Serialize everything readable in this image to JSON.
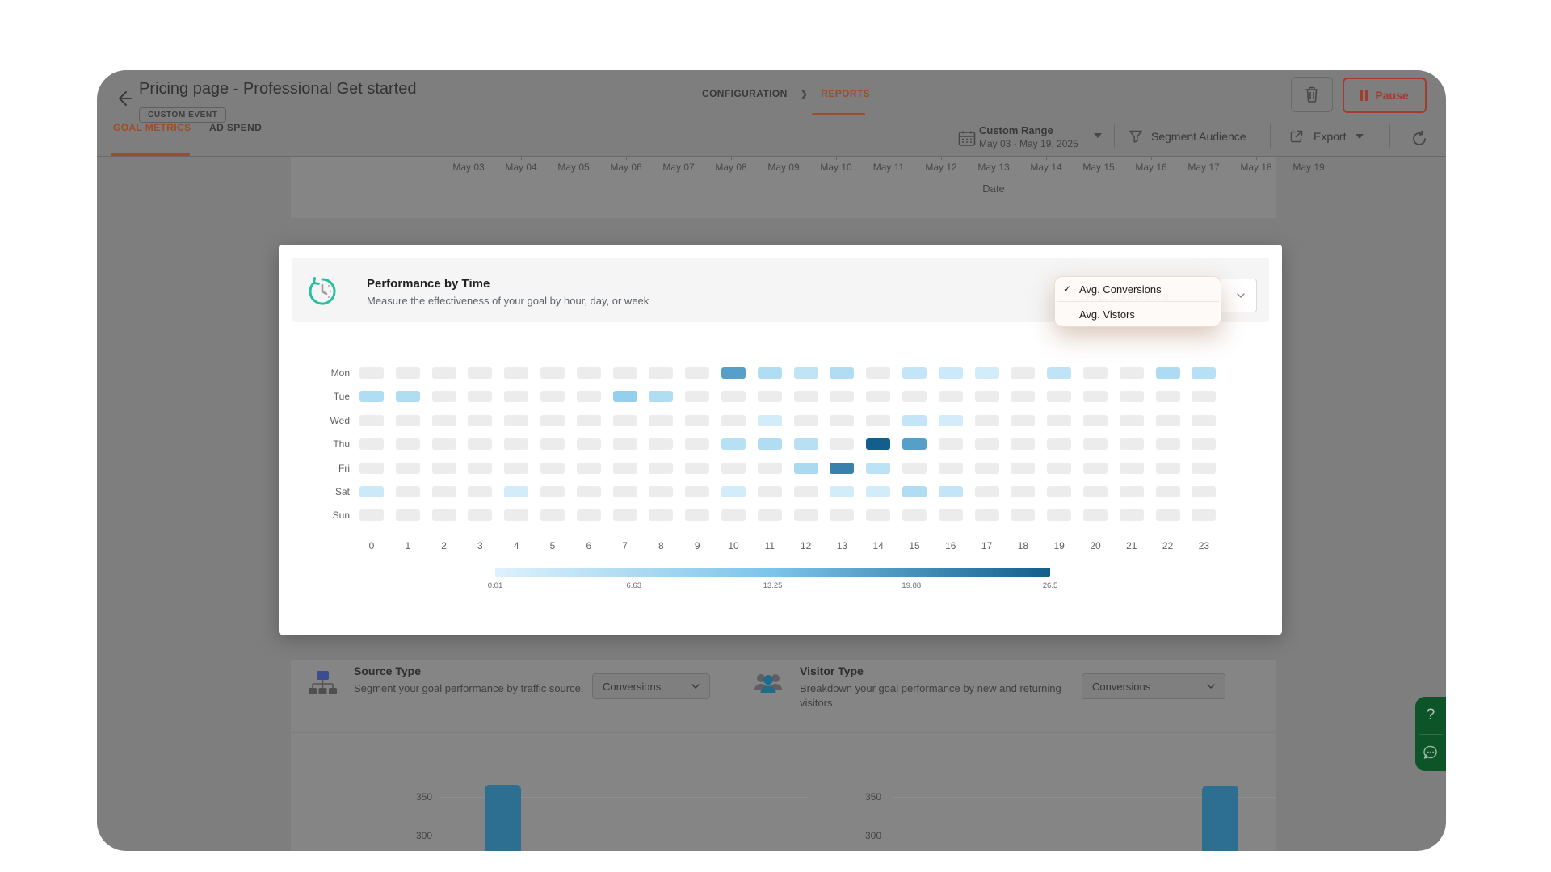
{
  "window": {
    "title": "Pricing page - Professional Get started",
    "badge": "CUSTOM EVENT",
    "pause_label": "Pause"
  },
  "breadcrumb": {
    "configuration": "CONFIGURATION",
    "reports": "REPORTS"
  },
  "tabs": {
    "goal_metrics": "GOAL METRICS",
    "ad_spend": "AD SPEND"
  },
  "toolbar": {
    "range_label": "Custom Range",
    "range_value": "May 03 - May 19, 2025",
    "segment": "Segment Audience",
    "export": "Export"
  },
  "panel": {
    "title": "Performance by Time",
    "subtitle": "Measure the effectiveness of your goal by hour, day, or week",
    "metric_select": "Avg. Conversions"
  },
  "menu": {
    "items": [
      {
        "label": "Avg. Conversions",
        "checked": true
      },
      {
        "label": "Avg. Vistors",
        "checked": false
      }
    ]
  },
  "source_section": {
    "title": "Source Type",
    "description": "Segment your goal performance by traffic source.",
    "select": "Conversions"
  },
  "visitor_section": {
    "title": "Visitor Type",
    "description": "Breakdown your goal performance by new and returning visitors.",
    "select": "Conversions"
  },
  "help_widget": {
    "question": "?"
  },
  "icons": {
    "back-arrow": "left arrow",
    "trash-icon": "trash can outline",
    "pause-icon": "two vertical bars",
    "calendar-icon": "calendar grid",
    "caret-down-icon": "filled triangle",
    "funnel-icon": "filter funnel",
    "export-icon": "box with outgoing arrow",
    "refresh-icon": "circular arrow",
    "clock-history-icon": "teal circular arrow clock",
    "checkmark-icon": "✓",
    "chevron-down-icon": "thin down chevron",
    "sitemap-icon": "hierarchy nodes",
    "people-icon": "group of visitors",
    "question-icon": "?",
    "chat-bubble-icon": "speech bubble with dots"
  },
  "colors": {
    "accent_orange_dimmed": "#9f4c29",
    "pause_red_dimmed": "#a33b31",
    "teal_icon": "#2abfa0",
    "heatmap_empty": "#ececec",
    "heatmap_min": "#ddf1fc",
    "heatmap_mid": "#7cc4e9",
    "heatmap_max": "#135e8c",
    "bar_blue_dimmed": "#2d6f90",
    "help_green_dimmed": "#0d5429",
    "dim_card": "#858585",
    "dim_background": "#7e7e7e"
  },
  "chart_data": [
    {
      "type": "heatmap",
      "title": "Performance by Time",
      "x_hours": [
        0,
        1,
        2,
        3,
        4,
        5,
        6,
        7,
        8,
        9,
        10,
        11,
        12,
        13,
        14,
        15,
        16,
        17,
        18,
        19,
        20,
        21,
        22,
        23
      ],
      "y_days": [
        "Mon",
        "Tue",
        "Wed",
        "Thu",
        "Fri",
        "Sat",
        "Sun"
      ],
      "values": [
        [
          0,
          0,
          0,
          0,
          0,
          0,
          0,
          0,
          0,
          0,
          18,
          6,
          4,
          6,
          0,
          3.5,
          2.5,
          1.5,
          0,
          4,
          0,
          0,
          6.5,
          5
        ],
        [
          6,
          6,
          0,
          0,
          0,
          0,
          0,
          10,
          6,
          0,
          0,
          0,
          0,
          0,
          0,
          0,
          0,
          0,
          0,
          0,
          0,
          0,
          0,
          0
        ],
        [
          0,
          0,
          0,
          0,
          0,
          0,
          0,
          0,
          0,
          0,
          0,
          1.5,
          0,
          0,
          0,
          3.5,
          1.5,
          0,
          0,
          0,
          0,
          0,
          0,
          0
        ],
        [
          0,
          0,
          0,
          0,
          0,
          0,
          0,
          0,
          0,
          0,
          5,
          6,
          5,
          0,
          26.5,
          18,
          0,
          0,
          0,
          0,
          0,
          0,
          0,
          0
        ],
        [
          0,
          0,
          0,
          0,
          0,
          0,
          0,
          0,
          0,
          0,
          0,
          0,
          7,
          22,
          4.5,
          0,
          0,
          0,
          0,
          0,
          0,
          0,
          0,
          0
        ],
        [
          2.5,
          0,
          0,
          0,
          1.5,
          0,
          0,
          0,
          0,
          0,
          1.5,
          0,
          0,
          1.5,
          1.5,
          6,
          3.5,
          0,
          0,
          0,
          0,
          0,
          0,
          0
        ],
        [
          0,
          0,
          0,
          0,
          0,
          0,
          0,
          0,
          0,
          0,
          0,
          0,
          0,
          0,
          0,
          0,
          0,
          0,
          0,
          0,
          0,
          0,
          0,
          0
        ]
      ],
      "value_scale": {
        "min": 0.01,
        "max": 26.5,
        "legend_ticks": [
          "0.01",
          "6.63",
          "13.25",
          "19.88",
          "26.5"
        ],
        "legend_position": "bottom"
      }
    },
    {
      "type": "bar",
      "section": "Source Type",
      "metric": "Conversions",
      "visible_yticks": [
        350,
        300
      ],
      "bars": [
        {
          "value_est": 366
        }
      ],
      "cropped": true
    },
    {
      "type": "bar",
      "section": "Visitor Type",
      "metric": "Conversions",
      "visible_yticks": [
        350,
        300
      ],
      "bars": [
        {
          "value_est": 365
        }
      ],
      "cropped": true
    },
    {
      "type": "line",
      "section": "top chart (only x axis visible)",
      "xlabel": "Date",
      "x_labels": [
        "May 03",
        "May 04",
        "May 05",
        "May 06",
        "May 07",
        "May 08",
        "May 09",
        "May 10",
        "May 11",
        "May 12",
        "May 13",
        "May 14",
        "May 15",
        "May 16",
        "May 17",
        "May 18",
        "May 19"
      ],
      "cropped": true
    }
  ]
}
